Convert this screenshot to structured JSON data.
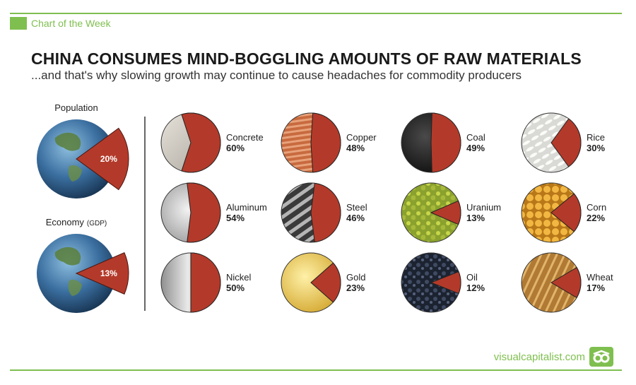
{
  "header": {
    "kicker": "Chart of the Week",
    "title": "CHINA CONSUMES MIND-BOGGLING AMOUNTS OF RAW MATERIALS",
    "subtitle": "...and that's why slowing growth may continue to cause headaches for commodity producers"
  },
  "footer": {
    "brand": "visualcapitalist.com"
  },
  "colors": {
    "accent": "#7fbf4f",
    "share": "#b33a2a"
  },
  "chart_data": [
    {
      "type": "pie",
      "items": [
        {
          "label": "Population",
          "value_label": "20%",
          "value": 20
        },
        {
          "label": "Economy",
          "label_suffix": "(GDP)",
          "value_label": "13%",
          "value": 13
        }
      ]
    },
    {
      "type": "pie",
      "items": [
        {
          "label": "Concrete",
          "value_label": "60%",
          "value": 60,
          "texture": "concrete"
        },
        {
          "label": "Copper",
          "value_label": "48%",
          "value": 48,
          "texture": "copper"
        },
        {
          "label": "Coal",
          "value_label": "49%",
          "value": 49,
          "texture": "coal"
        },
        {
          "label": "Rice",
          "value_label": "30%",
          "value": 30,
          "texture": "rice"
        },
        {
          "label": "Aluminum",
          "value_label": "54%",
          "value": 54,
          "texture": "aluminum"
        },
        {
          "label": "Steel",
          "value_label": "46%",
          "value": 46,
          "texture": "steel"
        },
        {
          "label": "Uranium",
          "value_label": "13%",
          "value": 13,
          "texture": "uranium"
        },
        {
          "label": "Corn",
          "value_label": "22%",
          "value": 22,
          "texture": "corn"
        },
        {
          "label": "Nickel",
          "value_label": "50%",
          "value": 50,
          "texture": "nickel"
        },
        {
          "label": "Gold",
          "value_label": "23%",
          "value": 23,
          "texture": "gold"
        },
        {
          "label": "Oil",
          "value_label": "12%",
          "value": 12,
          "texture": "oil"
        },
        {
          "label": "Wheat",
          "value_label": "17%",
          "value": 17,
          "texture": "wheat"
        }
      ]
    }
  ]
}
